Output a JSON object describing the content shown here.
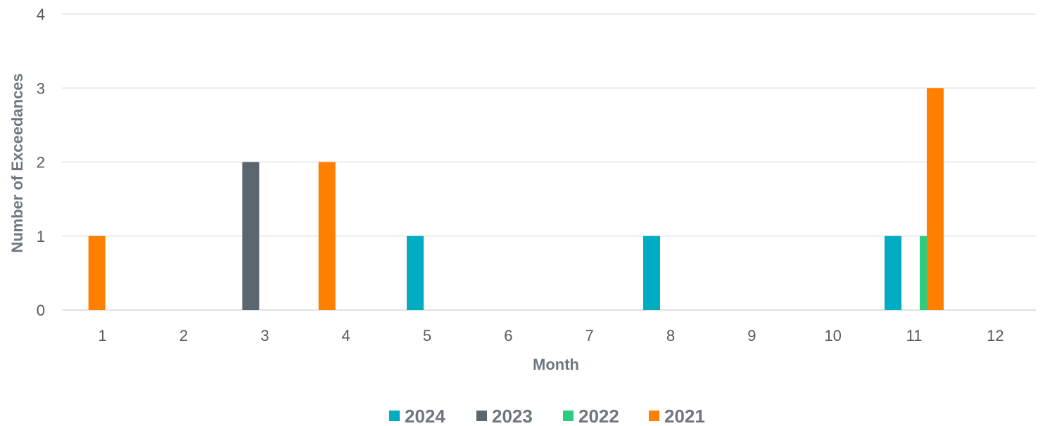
{
  "chart_data": {
    "type": "bar",
    "title": "",
    "xlabel": "Month",
    "ylabel": "Number of Exceedances",
    "categories": [
      "1",
      "2",
      "3",
      "4",
      "5",
      "6",
      "7",
      "8",
      "9",
      "10",
      "11",
      "12"
    ],
    "ylim": [
      0,
      4
    ],
    "yticks": [
      "0",
      "1",
      "2",
      "3",
      "4"
    ],
    "grid": true,
    "legend_position": "bottom",
    "series": [
      {
        "name": "2024",
        "color": "#00acc1",
        "values": [
          0,
          0,
          0,
          0,
          1,
          0,
          0,
          1,
          0,
          0,
          1,
          0
        ]
      },
      {
        "name": "2023",
        "color": "#5b6770",
        "values": [
          0,
          0,
          2,
          0,
          0,
          0,
          0,
          0,
          0,
          0,
          0,
          0
        ]
      },
      {
        "name": "2022",
        "color": "#2ecc7f",
        "values": [
          0,
          0,
          0,
          0,
          0,
          0,
          0,
          0,
          0,
          0,
          1,
          0
        ]
      },
      {
        "name": "2021",
        "color": "#ff8000",
        "values": [
          1,
          0,
          0,
          2,
          0,
          0,
          0,
          0,
          0,
          0,
          3,
          0
        ]
      }
    ]
  }
}
